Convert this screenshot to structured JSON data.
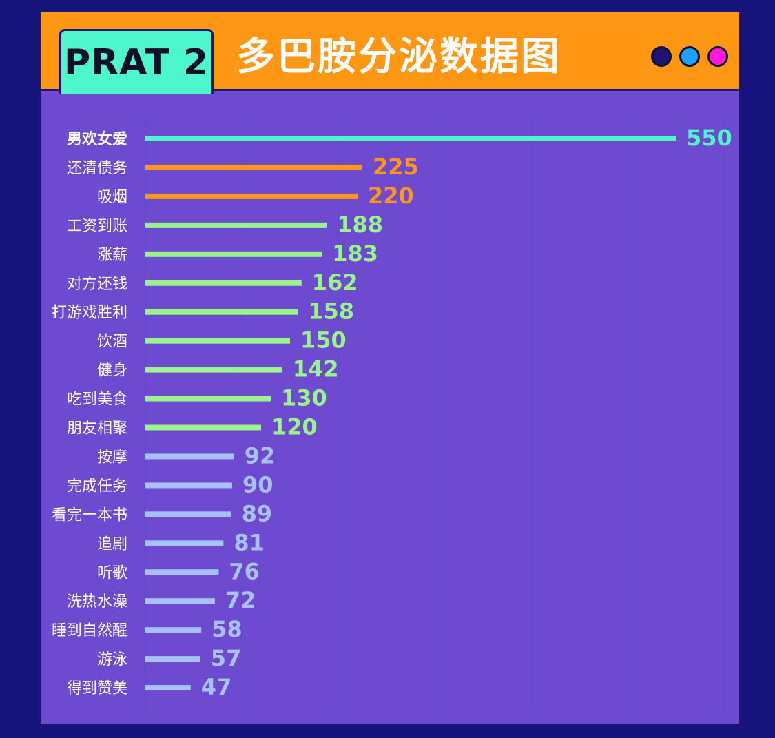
{
  "header": {
    "badge": "PRAT 2",
    "title": "多巴胺分泌数据图",
    "dots": [
      "#1b1675",
      "#1aa0ff",
      "#ff1ad9"
    ]
  },
  "colors": {
    "page_bg": "#16137a",
    "panel_bg": "#6e4ad1",
    "header_bg": "#ff9614",
    "badge_bg": "#4ef7cb",
    "tier_top": "#4ef7cb",
    "tier_orange": "#ff9614",
    "tier_green": "#99f589",
    "tier_blue": "#a5c1f6",
    "label_text": "#ffffff",
    "grid": "#5d4bc9"
  },
  "chart_data": {
    "type": "bar",
    "orientation": "horizontal",
    "title": "多巴胺分泌数据图",
    "xlim": [
      0,
      600
    ],
    "grid": true,
    "categories": [
      "男欢女爱",
      "还清债务",
      "吸烟",
      "工资到账",
      "涨薪",
      "对方还钱",
      "打游戏胜利",
      "饮酒",
      "健身",
      "吃到美食",
      "朋友相聚",
      "按摩",
      "完成任务",
      "看完一本书",
      "追剧",
      "听歌",
      "洗热水澡",
      "睡到自然醒",
      "游泳",
      "得到赞美"
    ],
    "values": [
      550,
      225,
      220,
      188,
      183,
      162,
      158,
      150,
      142,
      130,
      120,
      92,
      90,
      89,
      81,
      76,
      72,
      58,
      57,
      47
    ],
    "bar_colors": [
      "#4ef7cb",
      "#ff9614",
      "#ff9614",
      "#99f589",
      "#99f589",
      "#99f589",
      "#99f589",
      "#99f589",
      "#99f589",
      "#99f589",
      "#99f589",
      "#a5c1f6",
      "#a5c1f6",
      "#a5c1f6",
      "#a5c1f6",
      "#a5c1f6",
      "#a5c1f6",
      "#a5c1f6",
      "#a5c1f6",
      "#a5c1f6"
    ],
    "bold_categories": [
      "男欢女爱"
    ]
  }
}
